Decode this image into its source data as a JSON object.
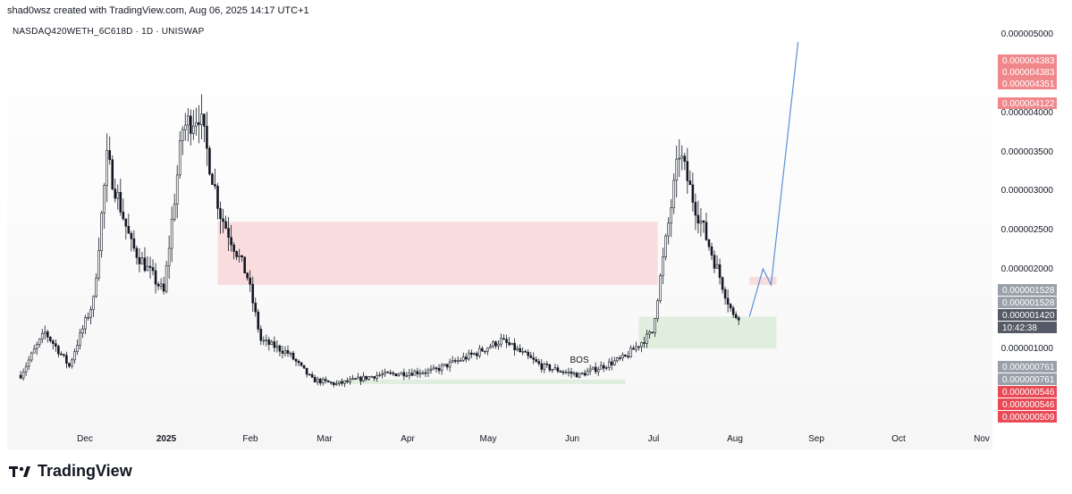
{
  "header": {
    "caption": "shad0wsz created with TradingView.com, Aug 06, 2025 14:17 UTC+1",
    "symbol": "NASDAQ420WETH_6C618D · 1D · UNISWAP"
  },
  "footer": {
    "brand": "TradingView"
  },
  "colors": {
    "candle": "#131722",
    "supply_zone": "#f6c8cc",
    "demand_zone": "#cfe8cf",
    "projection": "#5b8fd6",
    "red_badge": "#f0878b",
    "dark_badge": "#555a66",
    "gray_badge": "#9aa0a9",
    "red_strong": "#e84a56"
  },
  "chart_data": {
    "type": "candlestick",
    "price_unit": "WETH",
    "x_ticks": [
      "Dec",
      "2025",
      "Feb",
      "Mar",
      "Apr",
      "May",
      "Jun",
      "Jul",
      "Aug",
      "Sep",
      "Oct",
      "Nov"
    ],
    "y_ticks": [
      "0.000005000",
      "0.000004000",
      "0.000003500",
      "0.000003000",
      "0.000002500",
      "0.000002000",
      "0.000001000"
    ],
    "ylim": [
      3.5e-07,
      5.5e-06
    ],
    "price_path": [
      {
        "date": "2024-11-13",
        "price": 7e-07
      },
      {
        "date": "2024-11-22",
        "price": 1.2e-06
      },
      {
        "date": "2024-12-01",
        "price": 8e-07
      },
      {
        "date": "2024-12-10",
        "price": 1.6e-06
      },
      {
        "date": "2024-12-15",
        "price": 3.4e-06
      },
      {
        "date": "2024-12-24",
        "price": 2.3e-06
      },
      {
        "date": "2025-01-05",
        "price": 1.7e-06
      },
      {
        "date": "2025-01-12",
        "price": 3.8e-06
      },
      {
        "date": "2025-01-18",
        "price": 4e-06
      },
      {
        "date": "2025-01-26",
        "price": 2.7e-06
      },
      {
        "date": "2025-02-05",
        "price": 1.9e-06
      },
      {
        "date": "2025-02-10",
        "price": 1.1e-06
      },
      {
        "date": "2025-02-20",
        "price": 9.5e-07
      },
      {
        "date": "2025-03-01",
        "price": 6.5e-07
      },
      {
        "date": "2025-03-10",
        "price": 6e-07
      },
      {
        "date": "2025-03-25",
        "price": 7e-07
      },
      {
        "date": "2025-04-15",
        "price": 7.5e-07
      },
      {
        "date": "2025-05-01",
        "price": 9.5e-07
      },
      {
        "date": "2025-05-10",
        "price": 1.1e-06
      },
      {
        "date": "2025-05-25",
        "price": 8e-07
      },
      {
        "date": "2025-06-08",
        "price": 7e-07
      },
      {
        "date": "2025-06-25",
        "price": 9e-07
      },
      {
        "date": "2025-07-05",
        "price": 1.2e-06
      },
      {
        "date": "2025-07-12",
        "price": 2.8e-06
      },
      {
        "date": "2025-07-15",
        "price": 3.5e-06
      },
      {
        "date": "2025-07-20",
        "price": 2.9e-06
      },
      {
        "date": "2025-07-28",
        "price": 2.1e-06
      },
      {
        "date": "2025-08-04",
        "price": 1.4e-06
      },
      {
        "date": "2025-08-06",
        "price": 1.42e-06
      }
    ],
    "zones": [
      {
        "type": "supply",
        "from": "2025-01-25",
        "to": "2025-07-07",
        "low": 1.8e-06,
        "high": 2.6e-06
      },
      {
        "type": "supply",
        "from": "2025-08-10",
        "to": "2025-08-20",
        "low": 1.8e-06,
        "high": 1.9e-06
      },
      {
        "type": "demand",
        "from": "2025-06-30",
        "to": "2025-08-20",
        "low": 1e-06,
        "high": 1.4e-06
      },
      {
        "type": "demand",
        "from": "2025-03-10",
        "to": "2025-06-25",
        "low": 6e-07,
        "high": 6.5e-07
      }
    ],
    "annotations": [
      {
        "text": "BOS",
        "date": "2025-06-08",
        "price": 8e-07
      }
    ],
    "projection": [
      {
        "date": "2025-08-10",
        "price": 1.4e-06
      },
      {
        "date": "2025-08-15",
        "price": 2e-06
      },
      {
        "date": "2025-08-18",
        "price": 1.8e-06
      },
      {
        "date": "2025-08-28",
        "price": 4.9e-06
      }
    ],
    "price_badges": [
      {
        "text": "0.000004383",
        "style": "red"
      },
      {
        "text": "0.000004383",
        "style": "red"
      },
      {
        "text": "0.000004351",
        "style": "red"
      },
      {
        "text": "0.000004122",
        "style": "red"
      },
      {
        "text": "0.000001528",
        "style": "gray"
      },
      {
        "text": "0.000001528",
        "style": "gray"
      },
      {
        "text": "0.000001420",
        "style": "dark"
      },
      {
        "text": "10:42:38",
        "style": "dark"
      },
      {
        "text": "0.000000761",
        "style": "gray"
      },
      {
        "text": "0.000000761",
        "style": "gray"
      },
      {
        "text": "0.000000546",
        "style": "red"
      },
      {
        "text": "0.000000546",
        "style": "red"
      },
      {
        "text": "0.000000509",
        "style": "red"
      }
    ]
  }
}
